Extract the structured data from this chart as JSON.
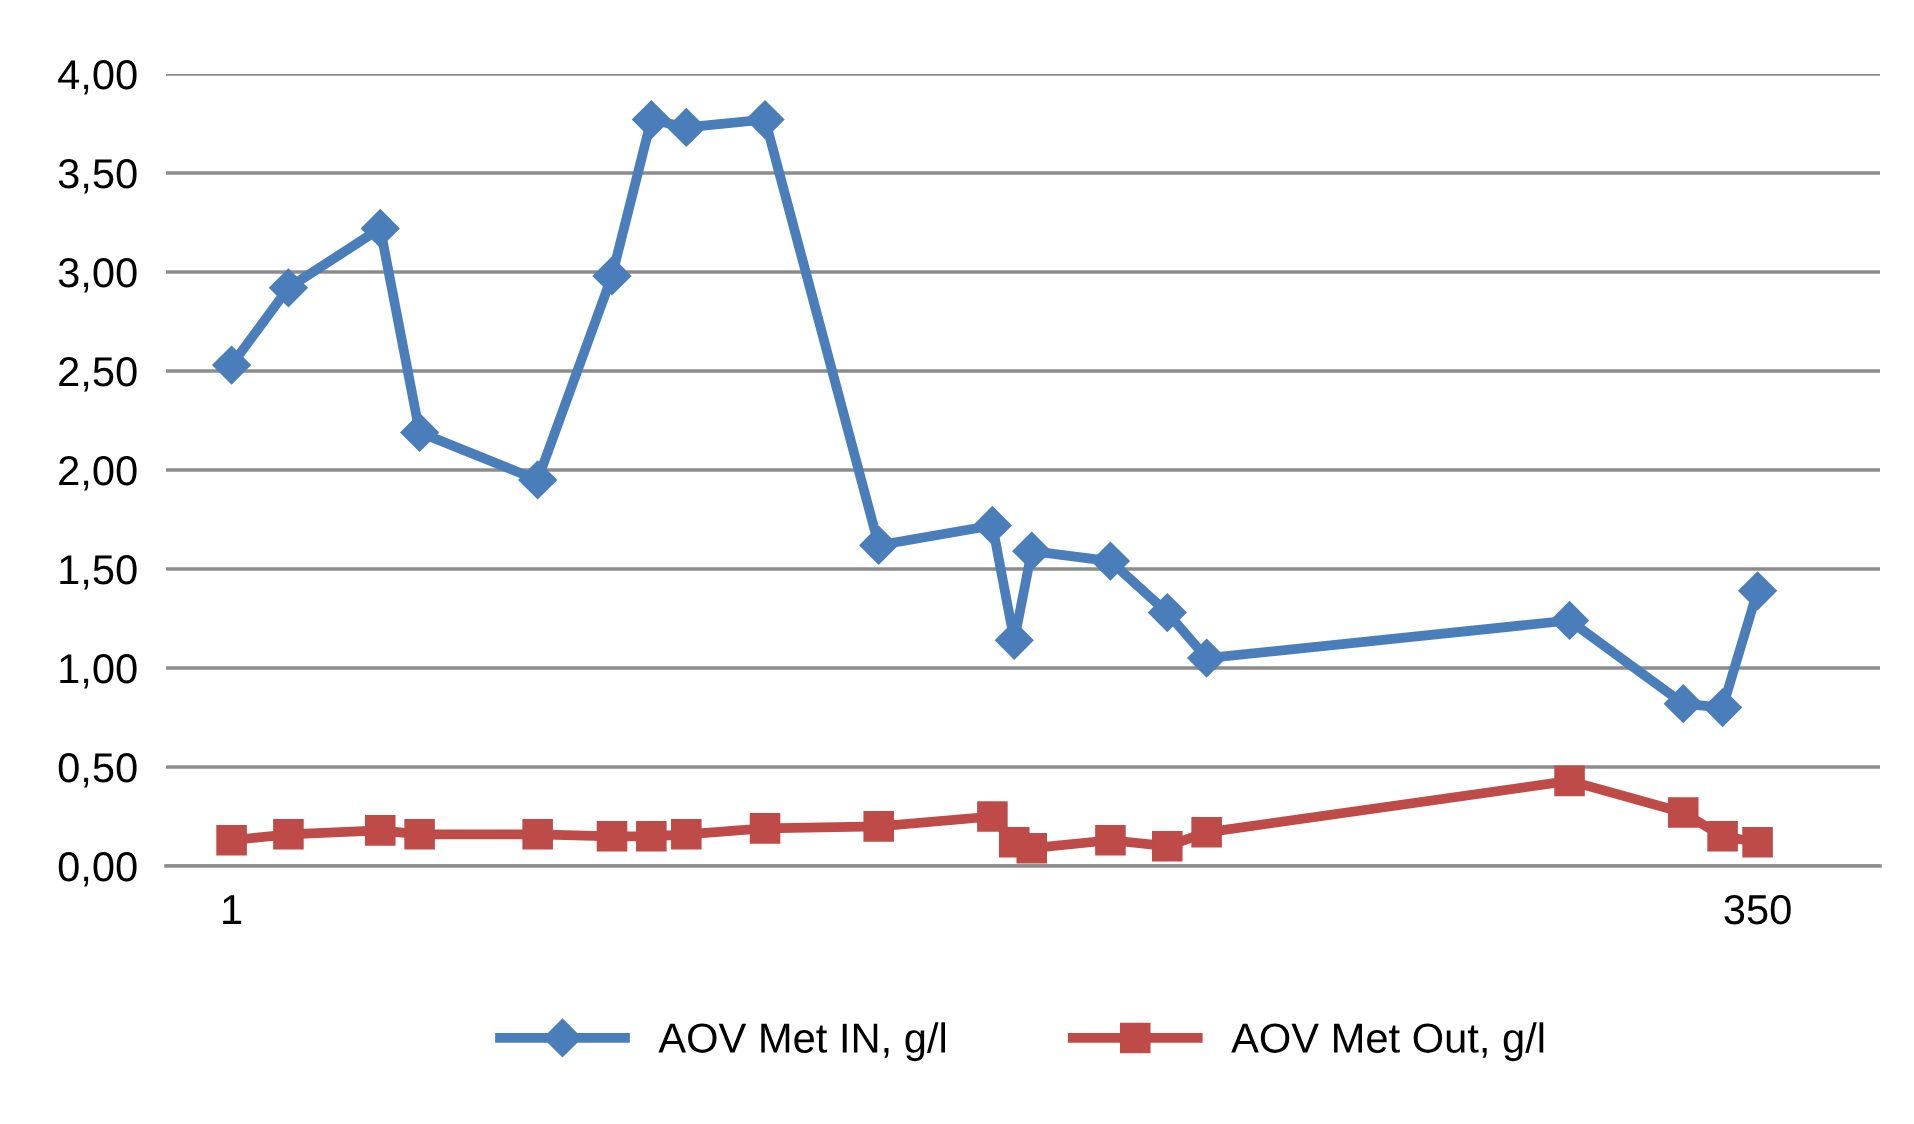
{
  "chart_data": {
    "type": "line",
    "x": [
      1,
      14,
      35,
      44,
      71,
      88,
      97,
      105,
      123,
      149,
      175,
      180,
      184,
      202,
      215,
      224,
      307,
      333,
      342,
      350
    ],
    "series": [
      {
        "name": "AOV Met IN, g/l",
        "color": "#4a7ebb",
        "marker": "diamond",
        "values": [
          2.53,
          2.92,
          3.22,
          2.19,
          1.95,
          2.98,
          3.77,
          3.73,
          3.77,
          1.62,
          1.72,
          1.14,
          1.59,
          1.54,
          1.28,
          1.05,
          1.24,
          0.82,
          0.8,
          1.39
        ]
      },
      {
        "name": "AOV Met Out, g/l",
        "color": "#be4b48",
        "marker": "square",
        "values": [
          0.13,
          0.16,
          0.18,
          0.16,
          0.16,
          0.15,
          0.15,
          0.16,
          0.19,
          0.2,
          0.25,
          0.12,
          0.09,
          0.13,
          0.1,
          0.17,
          0.43,
          0.27,
          0.15,
          0.12
        ]
      }
    ],
    "xlim": [
      -14,
      378
    ],
    "xticks": [
      1,
      350
    ],
    "ylim": [
      0,
      4
    ],
    "yticks": [
      {
        "value": 0,
        "label": "0,00"
      },
      {
        "value": 0.5,
        "label": "0,50"
      },
      {
        "value": 1,
        "label": "1,00"
      },
      {
        "value": 1.5,
        "label": "1,50"
      },
      {
        "value": 2,
        "label": "2,00"
      },
      {
        "value": 2.5,
        "label": "2,50"
      },
      {
        "value": 3,
        "label": "3,00"
      },
      {
        "value": 3.5,
        "label": "3,50"
      },
      {
        "value": 4,
        "label": "4,00"
      }
    ],
    "grid": "y",
    "legend": "bottom"
  }
}
